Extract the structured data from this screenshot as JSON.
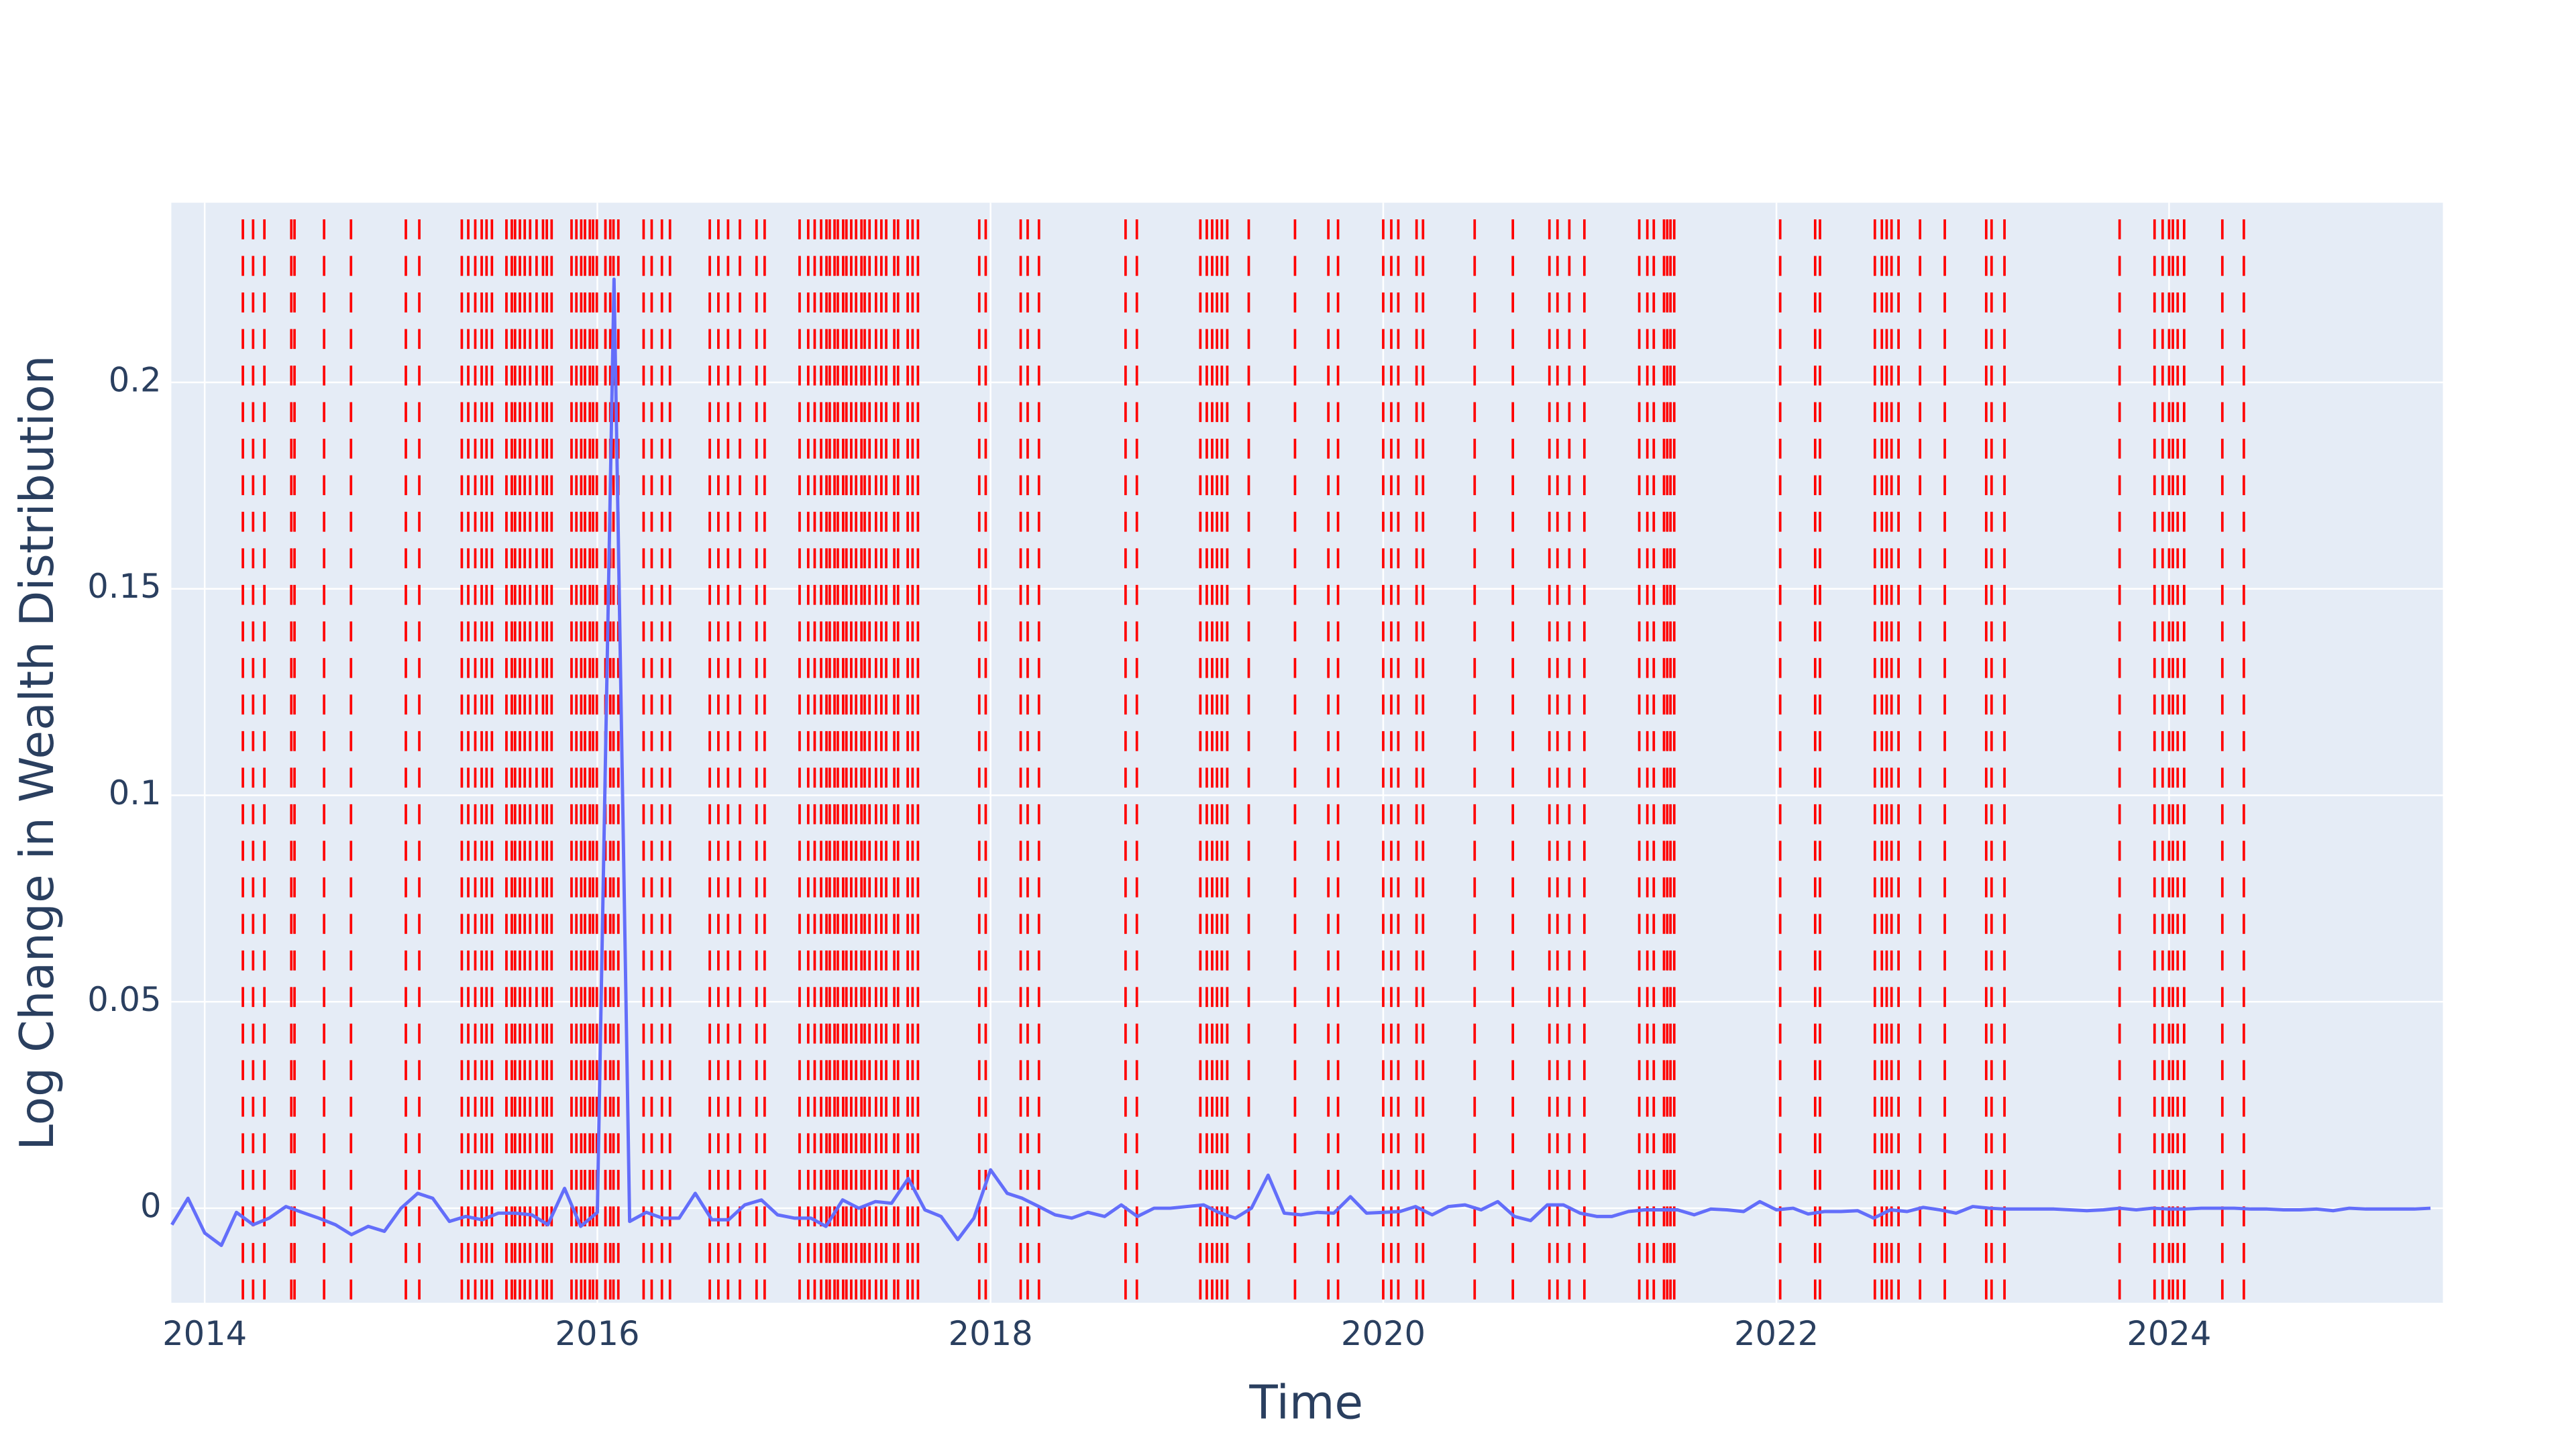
{
  "chart_data": {
    "type": "line",
    "x_label": "Time",
    "y_label": "Log Change in Wealth Distribution",
    "x": [
      "2013-11",
      "2013-12",
      "2014-01",
      "2014-02",
      "2014-03",
      "2014-04",
      "2014-05",
      "2014-06",
      "2014-07",
      "2014-08",
      "2014-09",
      "2014-10",
      "2014-11",
      "2014-12",
      "2015-01",
      "2015-02",
      "2015-03",
      "2015-04",
      "2015-05",
      "2015-06",
      "2015-07",
      "2015-08",
      "2015-09",
      "2015-10",
      "2015-11",
      "2015-12",
      "2016-01",
      "2016-02",
      "2016-03",
      "2016-04",
      "2016-05",
      "2016-06",
      "2016-07",
      "2016-08",
      "2016-09",
      "2016-10",
      "2016-11",
      "2016-12",
      "2017-01",
      "2017-02",
      "2017-03",
      "2017-04",
      "2017-05",
      "2017-06",
      "2017-07",
      "2017-08",
      "2017-09",
      "2017-10",
      "2017-11",
      "2017-12",
      "2018-01",
      "2018-02",
      "2018-03",
      "2018-04",
      "2018-05",
      "2018-06",
      "2018-07",
      "2018-08",
      "2018-09",
      "2018-10",
      "2018-11",
      "2018-12",
      "2019-01",
      "2019-02",
      "2019-03",
      "2019-04",
      "2019-05",
      "2019-06",
      "2019-07",
      "2019-08",
      "2019-09",
      "2019-10",
      "2019-11",
      "2019-12",
      "2020-01",
      "2020-02",
      "2020-03",
      "2020-04",
      "2020-05",
      "2020-06",
      "2020-07",
      "2020-08",
      "2020-09",
      "2020-10",
      "2020-11",
      "2020-12",
      "2021-01",
      "2021-02",
      "2021-03",
      "2021-04",
      "2021-05",
      "2021-06",
      "2021-07",
      "2021-08",
      "2021-09",
      "2021-10",
      "2021-11",
      "2021-12",
      "2022-01",
      "2022-02",
      "2022-03",
      "2022-04",
      "2022-05",
      "2022-06",
      "2022-07",
      "2022-08",
      "2022-09",
      "2022-10",
      "2022-11",
      "2022-12",
      "2023-01",
      "2023-02",
      "2023-03",
      "2023-04",
      "2023-05",
      "2023-06",
      "2023-07",
      "2023-08",
      "2023-09",
      "2023-10",
      "2023-11",
      "2023-12",
      "2024-01",
      "2024-02",
      "2024-03",
      "2024-04",
      "2024-05",
      "2024-06",
      "2024-07",
      "2024-08",
      "2024-09",
      "2024-10",
      "2024-11",
      "2024-12",
      "2025-01",
      "2025-02",
      "2025-03",
      "2025-04",
      "2025-05"
    ],
    "values": [
      -0.004,
      0.0024,
      -0.006,
      -0.009,
      -0.001,
      -0.004,
      -0.0024,
      0.0004,
      -0.001,
      -0.0024,
      -0.004,
      -0.0064,
      -0.0044,
      -0.0056,
      0,
      0.0036,
      0.0024,
      -0.0032,
      -0.002,
      -0.0028,
      -0.0012,
      -0.0012,
      -0.0016,
      -0.004,
      0.0048,
      -0.0044,
      -0.001,
      0.225,
      -0.0032,
      -0.001,
      -0.0024,
      -0.0024,
      0.0036,
      -0.0028,
      -0.0028,
      0.0008,
      0.002,
      -0.0016,
      -0.0024,
      -0.0024,
      -0.0044,
      0.002,
      0,
      0.0016,
      0.0012,
      0.0072,
      -0.0004,
      -0.002,
      -0.0076,
      -0.0024,
      0.0093,
      0.0036,
      0.0024,
      0.0004,
      -0.0016,
      -0.0024,
      -0.001,
      -0.002,
      0.0008,
      -0.002,
      0,
      0,
      0.0004,
      0.0008,
      -0.001,
      -0.0024,
      0,
      0.008,
      -0.0012,
      -0.0016,
      -0.001,
      -0.0012,
      0.0028,
      -0.0012,
      -0.001,
      -0.0008,
      0.0004,
      -0.0016,
      0.0004,
      0.0008,
      -0.0004,
      0.0016,
      -0.002,
      -0.003,
      0.0008,
      0.0008,
      -0.0012,
      -0.002,
      -0.002,
      -0.0008,
      -0.0004,
      -0.0004,
      -0.0004,
      -0.0016,
      -0.0002,
      -0.0004,
      -0.0008,
      0.0016,
      -0.0004,
      0,
      -0.0014,
      -0.0008,
      -0.0008,
      -0.0006,
      -0.0024,
      -0.0004,
      -0.0008,
      0.0002,
      -0.0004,
      -0.0012,
      0.0004,
      0,
      -0.0002,
      -0.0002,
      -0.0002,
      -0.0002,
      -0.0004,
      -0.0006,
      -0.0004,
      0,
      -0.0004,
      0,
      -0.0002,
      -0.0002,
      0,
      0,
      0,
      -0.0002,
      -0.0002,
      -0.0004,
      -0.0004,
      -0.0002,
      -0.0006,
      0,
      -0.0002,
      -0.0002,
      -0.0002,
      -0.0002,
      0
    ],
    "color": "#636efa",
    "events": {
      "color": "red",
      "x": [
        "2014-03-13",
        "2014-04-01",
        "2014-04-22",
        "2014-06-11",
        "2014-06-17",
        "2014-08-11",
        "2014-09-30",
        "2015-01-10",
        "2015-02-04",
        "2015-04-24",
        "2015-05-06",
        "2015-05-19",
        "2015-05-31",
        "2015-06-09",
        "2015-06-19",
        "2015-07-16",
        "2015-07-26",
        "2015-08-01",
        "2015-08-10",
        "2015-08-19",
        "2015-08-29",
        "2015-09-10",
        "2015-09-22",
        "2015-09-29",
        "2015-10-08",
        "2015-11-14",
        "2015-11-23",
        "2015-12-02",
        "2015-12-09",
        "2015-12-18",
        "2015-12-24",
        "2015-12-31",
        "2016-01-16",
        "2016-01-25",
        "2016-01-31",
        "2016-02-09",
        "2016-03-27",
        "2016-04-11",
        "2016-04-30",
        "2016-05-15",
        "2016-07-28",
        "2016-08-13",
        "2016-08-31",
        "2016-09-22",
        "2016-10-23",
        "2016-11-07",
        "2017-01-11",
        "2017-01-27",
        "2017-02-08",
        "2017-02-20",
        "2017-03-02",
        "2017-03-08",
        "2017-03-17",
        "2017-03-23",
        "2017-04-02",
        "2017-04-08",
        "2017-04-17",
        "2017-04-26",
        "2017-05-06",
        "2017-05-12",
        "2017-05-21",
        "2017-06-02",
        "2017-06-12",
        "2017-06-21",
        "2017-07-06",
        "2017-07-13",
        "2017-07-31",
        "2017-08-09",
        "2017-08-19",
        "2017-12-11",
        "2017-12-23",
        "2018-02-26",
        "2018-03-11",
        "2018-04-01",
        "2018-09-09",
        "2018-09-30",
        "2019-01-26",
        "2019-02-07",
        "2019-02-17",
        "2019-02-26",
        "2019-03-07",
        "2019-03-17",
        "2019-04-26",
        "2019-07-21",
        "2019-09-21",
        "2019-10-09",
        "2020-01-01",
        "2020-01-16",
        "2020-01-29",
        "2020-03-03",
        "2020-03-15",
        "2020-06-19",
        "2020-08-29",
        "2020-11-05",
        "2020-11-20",
        "2020-12-12",
        "2021-01-09",
        "2021-04-21",
        "2021-05-06",
        "2021-05-18",
        "2021-06-06",
        "2021-06-12",
        "2021-06-18",
        "2021-06-25",
        "2022-01-08",
        "2022-03-14",
        "2022-03-23",
        "2022-07-03",
        "2022-07-16",
        "2022-07-25",
        "2022-08-03",
        "2022-08-16",
        "2022-09-25",
        "2022-11-10",
        "2023-01-26",
        "2023-02-05",
        "2023-03-01",
        "2023-10-01",
        "2023-12-05",
        "2023-12-20",
        "2024-01-01",
        "2024-01-08",
        "2024-01-17",
        "2024-01-29",
        "2024-04-09",
        "2024-05-19"
      ]
    },
    "xlim": [
      "2013-10-31",
      "2025-05-24"
    ],
    "xticks": [
      {
        "value": "2014-01-01",
        "label": "2014"
      },
      {
        "value": "2016-01-01",
        "label": "2016"
      },
      {
        "value": "2018-01-01",
        "label": "2018"
      },
      {
        "value": "2020-01-01",
        "label": "2020"
      },
      {
        "value": "2022-01-01",
        "label": "2022"
      },
      {
        "value": "2024-01-01",
        "label": "2024"
      }
    ],
    "ylim": [
      -0.0229,
      0.2435
    ],
    "yticks": [
      0,
      0.05,
      0.1,
      0.15,
      0.2
    ],
    "grid": true
  }
}
